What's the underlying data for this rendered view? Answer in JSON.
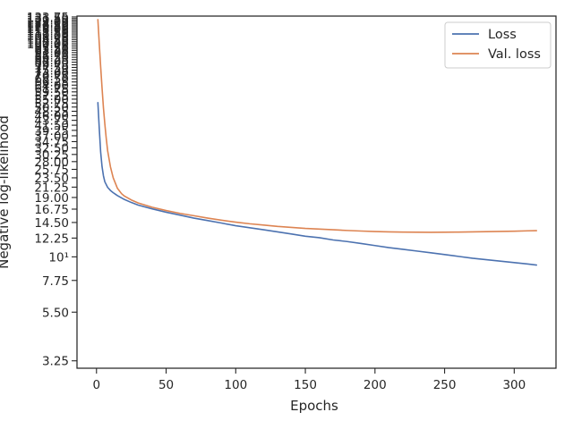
{
  "chart_data": {
    "type": "line",
    "xlabel": "Epochs",
    "ylabel": "Negative log-likelihood",
    "xlim": [
      -14,
      330
    ],
    "ylim": [
      3.0,
      135.0
    ],
    "yscale": "log",
    "grid": false,
    "legend": "upper-right",
    "x_ticks": [
      0,
      50,
      100,
      150,
      200,
      250,
      300
    ],
    "y_tick_labels": [
      "3.25",
      "5.50",
      "7.75",
      "10¹",
      "12.25",
      "14.50",
      "16.75",
      "19.00",
      "21.25",
      "23.50",
      "25.75",
      "28.00",
      "30.25",
      "32.50",
      "34.75",
      "37.00",
      "39.25",
      "41.50",
      "43.75",
      "46.00",
      "48.25",
      "50.50",
      "52.75",
      "55.00",
      "57.25",
      "59.50",
      "61.75",
      "64.00",
      "66.25",
      "68.50",
      "70.75",
      "73.00",
      "75.25",
      "77.50",
      "79.75",
      "82.00",
      "84.25",
      "86.50",
      "88.75",
      "91.00",
      "93.25",
      "95.50",
      "97.75",
      "100.00",
      "102.25",
      "104.50",
      "106.75",
      "109.00",
      "111.25",
      "113.50",
      "115.75",
      "118.00",
      "120.25",
      "122.50",
      "124.75",
      "127.00",
      "129.25",
      "131.50",
      "133.75"
    ],
    "y_tick_values": [
      3.25,
      5.5,
      7.75,
      10,
      12.25,
      14.5,
      16.75,
      19.0,
      21.25,
      23.5,
      25.75,
      28.0,
      30.25,
      32.5,
      34.75,
      37.0,
      39.25,
      41.5,
      43.75,
      46.0,
      48.25,
      50.5,
      52.75,
      55.0,
      57.25,
      59.5,
      61.75,
      64.0,
      66.25,
      68.5,
      70.75,
      73.0,
      75.25,
      77.5,
      79.75,
      82.0,
      84.25,
      86.5,
      88.75,
      91.0,
      93.25,
      95.5,
      97.75,
      100.0,
      102.25,
      104.5,
      106.75,
      109.0,
      111.25,
      113.5,
      115.75,
      118.0,
      120.25,
      122.5,
      124.75,
      127.0,
      129.25,
      131.5,
      133.75
    ],
    "series": [
      {
        "name": "Loss",
        "color": "#4c72b0",
        "x": [
          1,
          2,
          3,
          4,
          5,
          6,
          8,
          10,
          12,
          15,
          20,
          25,
          30,
          40,
          50,
          60,
          70,
          80,
          90,
          100,
          110,
          120,
          130,
          140,
          150,
          160,
          170,
          180,
          190,
          200,
          210,
          220,
          230,
          240,
          250,
          260,
          270,
          280,
          290,
          300,
          310,
          316
        ],
        "y": [
          53.0,
          40.0,
          31.0,
          26.5,
          24.0,
          22.5,
          21.2,
          20.5,
          20.0,
          19.4,
          18.6,
          18.0,
          17.5,
          16.8,
          16.2,
          15.7,
          15.2,
          14.8,
          14.4,
          14.0,
          13.7,
          13.4,
          13.1,
          12.8,
          12.5,
          12.3,
          12.0,
          11.8,
          11.55,
          11.3,
          11.05,
          10.85,
          10.65,
          10.45,
          10.25,
          10.05,
          9.85,
          9.7,
          9.55,
          9.4,
          9.25,
          9.15
        ]
      },
      {
        "name": "Val. loss",
        "color": "#dd8452",
        "x": [
          1,
          2,
          3,
          4,
          5,
          6,
          7,
          8,
          10,
          12,
          15,
          18,
          20,
          25,
          30,
          40,
          50,
          60,
          70,
          80,
          90,
          100,
          110,
          120,
          130,
          140,
          150,
          160,
          170,
          180,
          190,
          200,
          210,
          220,
          230,
          240,
          250,
          260,
          270,
          280,
          290,
          300,
          310,
          316
        ],
        "y": [
          130.0,
          100.0,
          78.0,
          62.0,
          50.0,
          42.0,
          36.0,
          31.5,
          26.5,
          23.5,
          21.0,
          19.8,
          19.3,
          18.5,
          17.9,
          17.1,
          16.5,
          16.0,
          15.6,
          15.2,
          14.85,
          14.55,
          14.3,
          14.1,
          13.9,
          13.75,
          13.6,
          13.5,
          13.4,
          13.3,
          13.22,
          13.15,
          13.1,
          13.07,
          13.05,
          13.04,
          13.05,
          13.07,
          13.1,
          13.13,
          13.16,
          13.2,
          13.25,
          13.28
        ]
      }
    ]
  }
}
